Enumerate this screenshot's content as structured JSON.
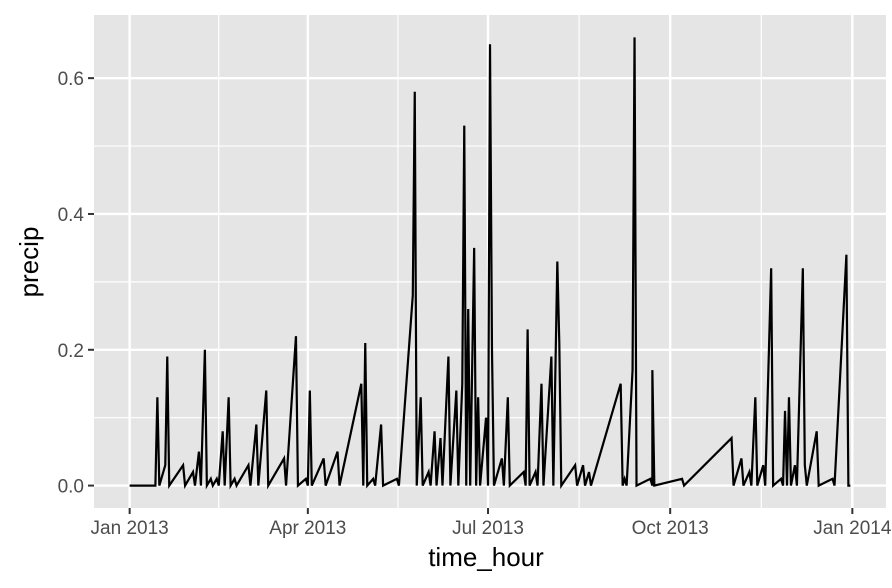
{
  "chart_data": {
    "type": "line",
    "title": "",
    "xlabel": "time_hour",
    "ylabel": "precip",
    "x_type": "date",
    "xlim": [
      "2012-12-14",
      "2014-01-18"
    ],
    "ylim": [
      -0.033,
      0.693
    ],
    "xticks": [
      {
        "value": "2013-01-01",
        "label": "Jan 2013"
      },
      {
        "value": "2013-04-01",
        "label": "Apr 2013"
      },
      {
        "value": "2013-07-01",
        "label": "Jul 2013"
      },
      {
        "value": "2013-10-01",
        "label": "Oct 2013"
      },
      {
        "value": "2014-01-01",
        "label": "Jan 2014"
      }
    ],
    "yticks": [
      {
        "value": 0.0,
        "label": "0.0"
      },
      {
        "value": 0.2,
        "label": "0.2"
      },
      {
        "value": 0.4,
        "label": "0.4"
      },
      {
        "value": 0.6,
        "label": "0.6"
      }
    ],
    "grid": true,
    "legend": "none",
    "colors": {
      "panel": "#e5e5e5",
      "grid": "#ffffff",
      "line": "#000000",
      "text": "#4d4d4d"
    },
    "series": [
      {
        "points": [
          [
            "2013-01-01",
            0.0
          ],
          [
            "2013-01-14",
            0.0
          ],
          [
            "2013-01-15",
            0.13
          ],
          [
            "2013-01-16",
            0.0
          ],
          [
            "2013-01-19",
            0.03
          ],
          [
            "2013-01-20",
            0.19
          ],
          [
            "2013-01-21",
            0.0
          ],
          [
            "2013-01-28",
            0.03
          ],
          [
            "2013-01-29",
            0.0
          ],
          [
            "2013-02-02",
            0.02
          ],
          [
            "2013-02-03",
            0.0
          ],
          [
            "2013-02-05",
            0.05
          ],
          [
            "2013-02-06",
            0.0
          ],
          [
            "2013-02-08",
            0.2
          ],
          [
            "2013-02-09",
            0.0
          ],
          [
            "2013-02-11",
            0.01
          ],
          [
            "2013-02-12",
            0.0
          ],
          [
            "2013-02-14",
            0.01
          ],
          [
            "2013-02-15",
            0.0
          ],
          [
            "2013-02-17",
            0.08
          ],
          [
            "2013-02-18",
            0.0
          ],
          [
            "2013-02-20",
            0.13
          ],
          [
            "2013-02-21",
            0.0
          ],
          [
            "2013-02-23",
            0.01
          ],
          [
            "2013-02-24",
            0.0
          ],
          [
            "2013-03-02",
            0.03
          ],
          [
            "2013-03-03",
            0.0
          ],
          [
            "2013-03-06",
            0.09
          ],
          [
            "2013-03-07",
            0.0
          ],
          [
            "2013-03-11",
            0.14
          ],
          [
            "2013-03-12",
            0.0
          ],
          [
            "2013-03-20",
            0.04
          ],
          [
            "2013-03-21",
            0.0
          ],
          [
            "2013-03-26",
            0.22
          ],
          [
            "2013-03-27",
            0.0
          ],
          [
            "2013-03-31",
            0.01
          ],
          [
            "2013-04-01",
            0.0
          ],
          [
            "2013-04-02",
            0.14
          ],
          [
            "2013-04-03",
            0.0
          ],
          [
            "2013-04-09",
            0.04
          ],
          [
            "2013-04-10",
            0.0
          ],
          [
            "2013-04-16",
            0.05
          ],
          [
            "2013-04-17",
            0.0
          ],
          [
            "2013-04-28",
            0.15
          ],
          [
            "2013-04-29",
            0.0
          ],
          [
            "2013-04-30",
            0.21
          ],
          [
            "2013-05-01",
            0.0
          ],
          [
            "2013-05-04",
            0.01
          ],
          [
            "2013-05-05",
            0.0
          ],
          [
            "2013-05-08",
            0.09
          ],
          [
            "2013-05-09",
            0.0
          ],
          [
            "2013-05-16",
            0.01
          ],
          [
            "2013-05-17",
            0.0
          ],
          [
            "2013-05-24",
            0.28
          ],
          [
            "2013-05-25",
            0.58
          ],
          [
            "2013-05-26",
            0.0
          ],
          [
            "2013-05-28",
            0.13
          ],
          [
            "2013-05-29",
            0.0
          ],
          [
            "2013-06-01",
            0.02
          ],
          [
            "2013-06-02",
            0.0
          ],
          [
            "2013-06-04",
            0.08
          ],
          [
            "2013-06-05",
            0.0
          ],
          [
            "2013-06-07",
            0.07
          ],
          [
            "2013-06-08",
            0.0
          ],
          [
            "2013-06-11",
            0.19
          ],
          [
            "2013-06-12",
            0.0
          ],
          [
            "2013-06-15",
            0.14
          ],
          [
            "2013-06-16",
            0.0
          ],
          [
            "2013-06-18",
            0.15
          ],
          [
            "2013-06-19",
            0.53
          ],
          [
            "2013-06-20",
            0.0
          ],
          [
            "2013-06-21",
            0.26
          ],
          [
            "2013-06-22",
            0.0
          ],
          [
            "2013-06-24",
            0.35
          ],
          [
            "2013-06-25",
            0.0
          ],
          [
            "2013-06-26",
            0.13
          ],
          [
            "2013-06-27",
            0.0
          ],
          [
            "2013-06-30",
            0.1
          ],
          [
            "2013-07-01",
            0.0
          ],
          [
            "2013-07-02",
            0.65
          ],
          [
            "2013-07-03",
            0.2
          ],
          [
            "2013-07-04",
            0.0
          ],
          [
            "2013-07-08",
            0.04
          ],
          [
            "2013-07-09",
            0.0
          ],
          [
            "2013-07-11",
            0.13
          ],
          [
            "2013-07-12",
            0.0
          ],
          [
            "2013-07-19",
            0.02
          ],
          [
            "2013-07-20",
            0.0
          ],
          [
            "2013-07-21",
            0.23
          ],
          [
            "2013-07-22",
            0.0
          ],
          [
            "2013-07-25",
            0.02
          ],
          [
            "2013-07-26",
            0.0
          ],
          [
            "2013-07-28",
            0.15
          ],
          [
            "2013-07-29",
            0.0
          ],
          [
            "2013-08-02",
            0.19
          ],
          [
            "2013-08-03",
            0.0
          ],
          [
            "2013-08-05",
            0.33
          ],
          [
            "2013-08-06",
            0.21
          ],
          [
            "2013-08-07",
            0.0
          ],
          [
            "2013-08-14",
            0.03
          ],
          [
            "2013-08-15",
            0.0
          ],
          [
            "2013-08-18",
            0.03
          ],
          [
            "2013-08-19",
            0.0
          ],
          [
            "2013-08-21",
            0.02
          ],
          [
            "2013-08-22",
            0.0
          ],
          [
            "2013-09-06",
            0.15
          ],
          [
            "2013-09-07",
            0.0
          ],
          [
            "2013-09-08",
            0.01
          ],
          [
            "2013-09-09",
            0.0
          ],
          [
            "2013-09-12",
            0.17
          ],
          [
            "2013-09-13",
            0.66
          ],
          [
            "2013-09-14",
            0.0
          ],
          [
            "2013-09-21",
            0.01
          ],
          [
            "2013-09-22",
            0.0
          ],
          [
            "2013-09-22",
            0.17
          ],
          [
            "2013-09-23",
            0.0
          ],
          [
            "2013-10-07",
            0.01
          ],
          [
            "2013-10-08",
            0.0
          ],
          [
            "2013-11-01",
            0.07
          ],
          [
            "2013-11-02",
            0.0
          ],
          [
            "2013-11-06",
            0.04
          ],
          [
            "2013-11-07",
            0.0
          ],
          [
            "2013-11-10",
            0.02
          ],
          [
            "2013-11-11",
            0.0
          ],
          [
            "2013-11-13",
            0.13
          ],
          [
            "2013-11-14",
            0.0
          ],
          [
            "2013-11-17",
            0.03
          ],
          [
            "2013-11-18",
            0.0
          ],
          [
            "2013-11-21",
            0.32
          ],
          [
            "2013-11-22",
            0.0
          ],
          [
            "2013-11-26",
            0.01
          ],
          [
            "2013-11-27",
            0.0
          ],
          [
            "2013-11-28",
            0.11
          ],
          [
            "2013-11-29",
            0.0
          ],
          [
            "2013-11-30",
            0.13
          ],
          [
            "2013-12-01",
            0.0
          ],
          [
            "2013-12-03",
            0.03
          ],
          [
            "2013-12-04",
            0.0
          ],
          [
            "2013-12-07",
            0.32
          ],
          [
            "2013-12-08",
            0.03
          ],
          [
            "2013-12-09",
            0.0
          ],
          [
            "2013-12-14",
            0.08
          ],
          [
            "2013-12-15",
            0.0
          ],
          [
            "2013-12-22",
            0.01
          ],
          [
            "2013-12-23",
            0.0
          ],
          [
            "2013-12-29",
            0.34
          ],
          [
            "2013-12-30",
            0.0
          ],
          [
            "2013-12-31",
            0.0
          ]
        ]
      }
    ]
  }
}
